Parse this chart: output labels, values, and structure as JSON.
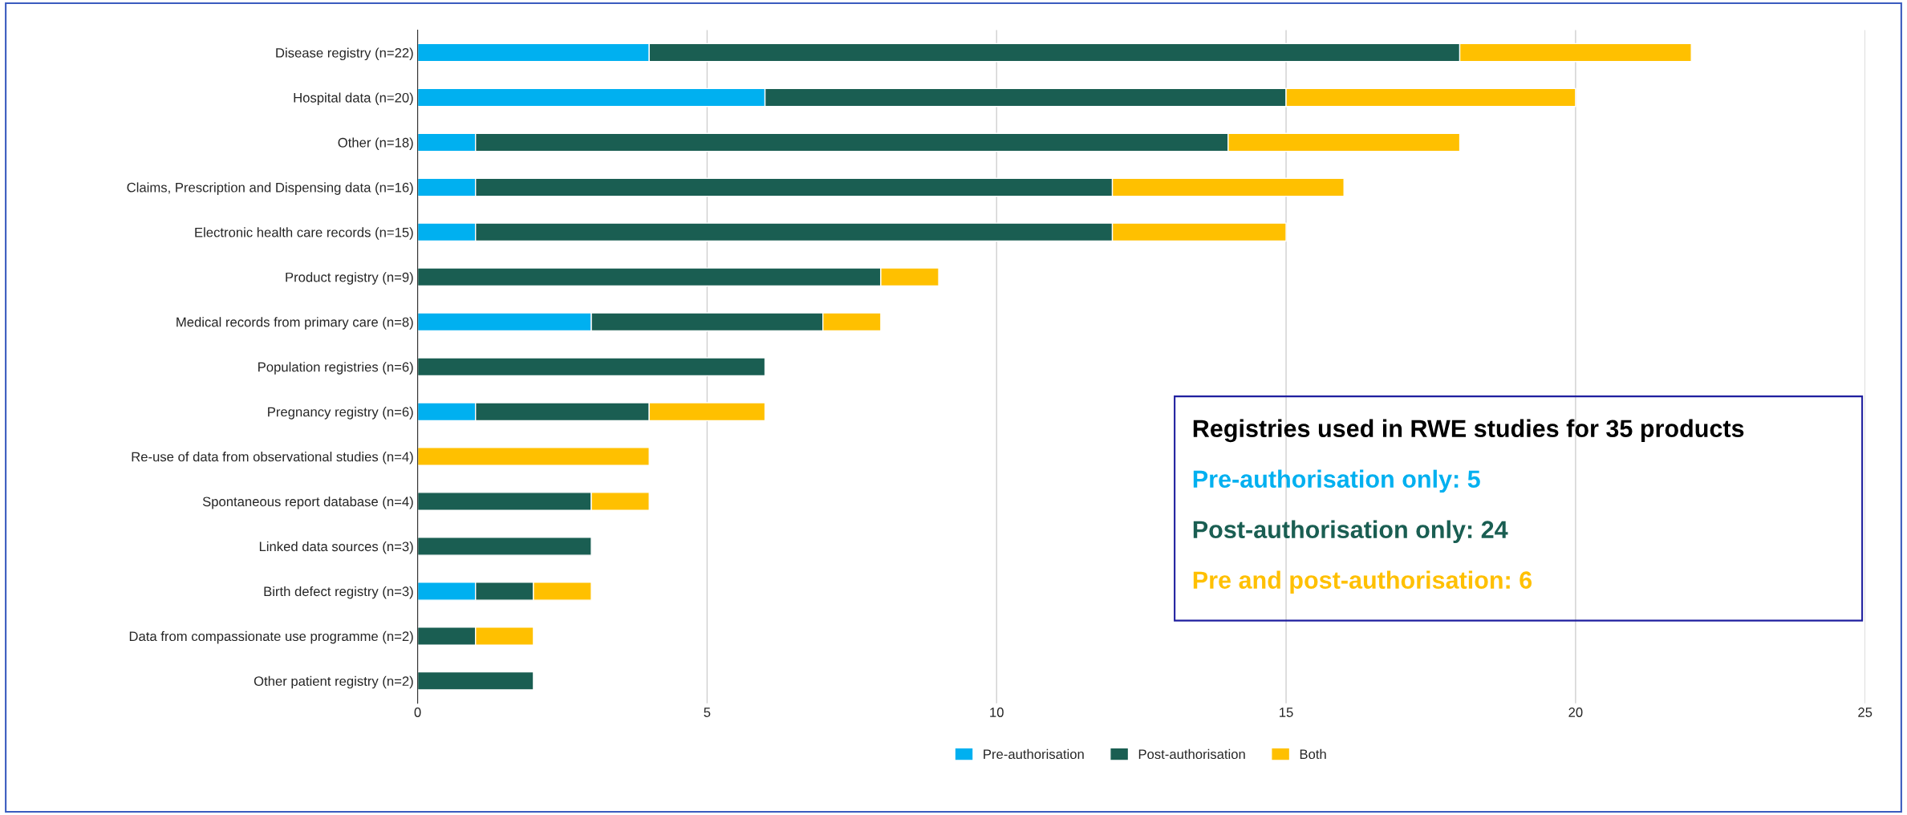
{
  "chart_data": {
    "type": "bar",
    "orientation": "horizontal",
    "stacked": true,
    "categories": [
      "Disease registry (n=22)",
      "Hospital data (n=20)",
      "Other (n=18)",
      "Claims, Prescription and Dispensing data (n=16)",
      "Electronic health care records (n=15)",
      "Product registry (n=9)",
      "Medical records from primary care (n=8)",
      "Population registries (n=6)",
      "Pregnancy registry (n=6)",
      "Re-use of data from observational studies (n=4)",
      "Spontaneous report database (n=4)",
      "Linked data sources (n=3)",
      "Birth defect registry (n=3)",
      "Data from compassionate use programme (n=2)",
      "Other patient registry (n=2)"
    ],
    "series": [
      {
        "name": "Pre-authorisation",
        "color": "#00b0f0",
        "values": [
          4,
          6,
          1,
          1,
          1,
          null,
          3,
          null,
          1,
          null,
          null,
          null,
          1,
          null,
          null
        ]
      },
      {
        "name": "Post-authorisation",
        "color": "#1a5e52",
        "values": [
          14,
          9,
          13,
          11,
          11,
          8,
          4,
          6,
          3,
          null,
          3,
          3,
          1,
          1,
          2
        ]
      },
      {
        "name": "Both",
        "color": "#ffc000",
        "values": [
          4,
          5,
          4,
          4,
          3,
          1,
          1,
          null,
          2,
          4,
          1,
          null,
          1,
          1,
          null
        ]
      }
    ],
    "xlim": [
      0,
      25
    ],
    "xticks": [
      0,
      5,
      10,
      15,
      20,
      25
    ],
    "grid": "x",
    "legend": "bottom",
    "annotations": [
      "Registries used in RWE studies for 35 products",
      "Pre-authorisation only: 5",
      "Post-authorisation only: 24",
      "Pre and post-authorisation: 6"
    ]
  }
}
